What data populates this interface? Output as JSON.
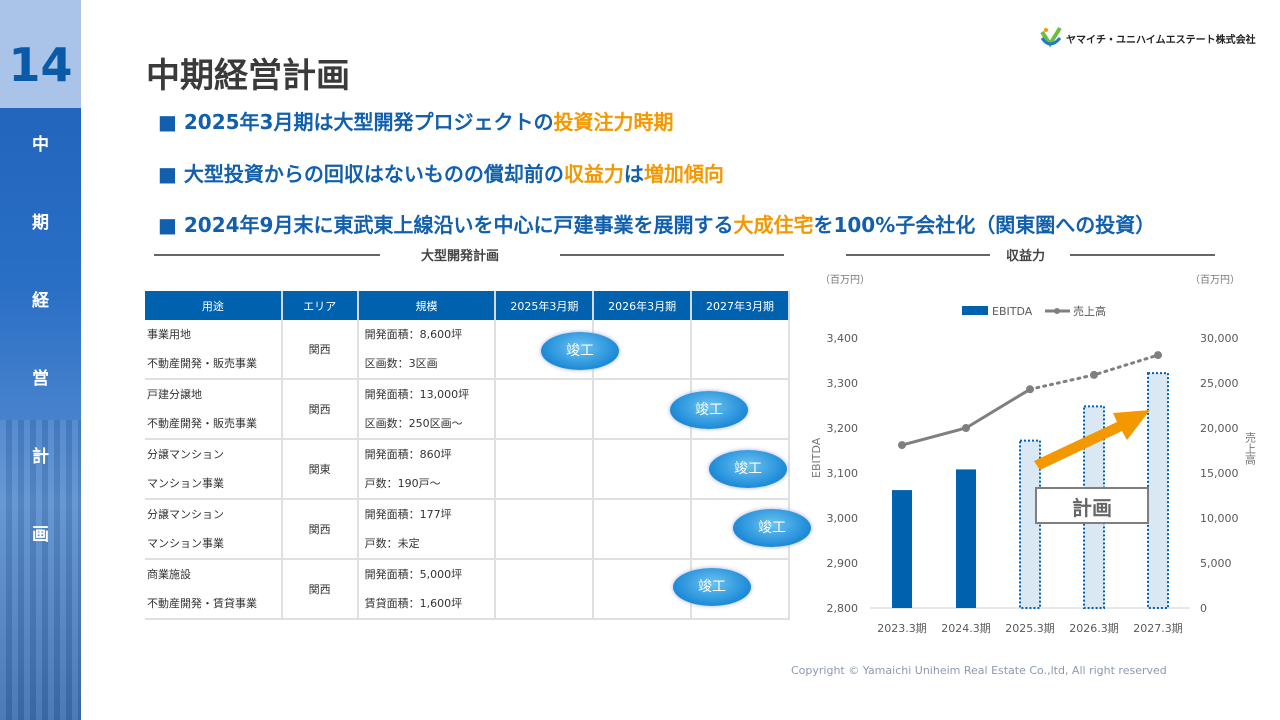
{
  "sidebar": {
    "number": "14",
    "chars": [
      "中",
      "期",
      "経",
      "営",
      "計",
      "画"
    ]
  },
  "title": "中期経営計画",
  "logo": {
    "company": "ヤマイチ・ユニハイムエステート株式会社",
    "mark": "YUEG"
  },
  "bullets": [
    {
      "pre": "■ 2025年3月期は大型開発プロジェクトの",
      "hl": "投資注力時期",
      "post": "",
      "hl2": "",
      "post2": ""
    },
    {
      "pre": "■ 大型投資からの回収はないものの償却前の",
      "hl": "収益力",
      "post": "は",
      "hl2": "増加傾向",
      "post2": ""
    },
    {
      "pre": "■ 2024年9月末に東武東上線沿いを中心に戸建事業を展開する",
      "hl": "大成住宅",
      "post": "を100%子会社化（関東圏への投資）",
      "hl2": "",
      "post2": ""
    }
  ],
  "sections": {
    "left": "大型開発計画",
    "right": "収益力"
  },
  "table": {
    "headers": [
      "用途",
      "エリア",
      "規模",
      "2025年3月期",
      "2026年3月期",
      "2027年3月期"
    ],
    "rows": [
      {
        "use1": "事業用地",
        "use2": "不動産開発・販売事業",
        "area": "関西",
        "scale1": "開発面積：8,600坪",
        "scale2": "区画数：3区画",
        "milestone": "竣工"
      },
      {
        "use1": "戸建分譲地",
        "use2": "不動産開発・販売事業",
        "area": "関西",
        "scale1": "開発面積：13,000坪",
        "scale2": "区画数：250区画～",
        "milestone": "竣工"
      },
      {
        "use1": "分譲マンション",
        "use2": "マンション事業",
        "area": "関東",
        "scale1": "開発面積：860坪",
        "scale2": "戸数：190戸～",
        "milestone": "竣工"
      },
      {
        "use1": "分譲マンション",
        "use2": "マンション事業",
        "area": "関西",
        "scale1": "開発面積：177坪",
        "scale2": "戸数：未定",
        "milestone": "竣工"
      },
      {
        "use1": "商業施設",
        "use2": "不動産開発・賃貸事業",
        "area": "関西",
        "scale1": "開発面積：5,000坪",
        "scale2": "賃貸面積：1,600坪",
        "milestone": "竣工"
      }
    ]
  },
  "chart_data": {
    "type": "bar+line",
    "categories": [
      "2023.3期",
      "2024.3期",
      "2025.3期",
      "2026.3期",
      "2027.3期"
    ],
    "series": [
      {
        "name": "EBITDA",
        "type": "bar",
        "axis": "left",
        "values": [
          3062,
          3108,
          3172,
          3248,
          3322
        ],
        "planned_from_index": 2,
        "color": "#0061ae",
        "planned_fill": "#d9e8f2"
      },
      {
        "name": "売上高",
        "type": "line",
        "axis": "right",
        "values": [
          18100,
          20000,
          24300,
          25900,
          28100
        ],
        "dotted_from_index": 2,
        "color": "#7f7f7f"
      }
    ],
    "left_axis": {
      "label": "EBITDA",
      "unit": "（百万円）",
      "range": [
        2800,
        3400
      ],
      "ticks": [
        "2,800",
        "2,900",
        "3,000",
        "3,100",
        "3,200",
        "3,300",
        "3,400"
      ]
    },
    "right_axis": {
      "label": "売上高",
      "unit": "（百万円）",
      "range": [
        0,
        30000
      ],
      "ticks": [
        "0",
        "5,000",
        "10,000",
        "15,000",
        "20,000",
        "25,000",
        "30,000"
      ]
    },
    "annotation": "計画",
    "legend_position": "top",
    "arrow_color": "#f39800"
  },
  "copyright": "Copyright © Yamaichi Uniheim Real Estate Co.,ltd, All right reserved"
}
